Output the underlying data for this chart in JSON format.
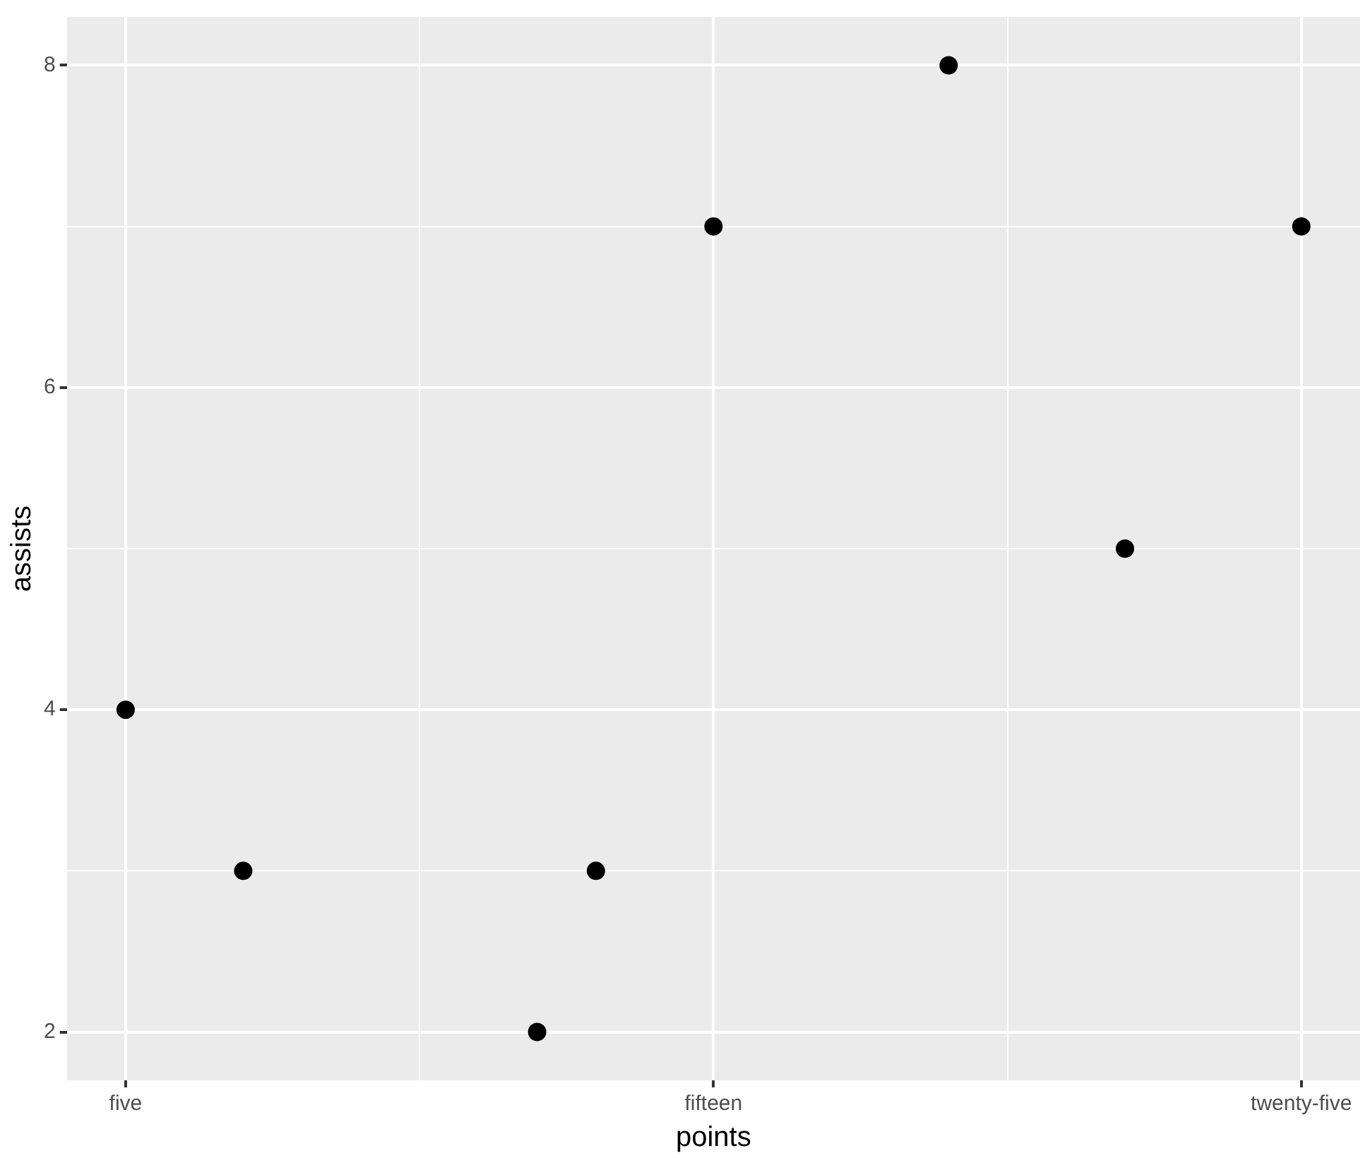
{
  "chart_data": {
    "type": "scatter",
    "xlabel": "points",
    "ylabel": "assists",
    "categories": [
      "five",
      null,
      null,
      null,
      null,
      null,
      null,
      null,
      null,
      null,
      "fifteen",
      null,
      null,
      null,
      null,
      null,
      null,
      null,
      null,
      null,
      "twenty-five"
    ],
    "values": [
      4,
      null,
      3,
      null,
      null,
      null,
      null,
      2,
      3,
      null,
      7,
      null,
      null,
      null,
      8,
      null,
      null,
      5,
      null,
      null,
      7
    ],
    "color": "#000000",
    "marker": "circle",
    "grid": true,
    "legend": false,
    "ylim": [
      1.7,
      8.3
    ],
    "yticks": [
      2,
      {
        "value": 3,
        "label": null
      },
      4,
      {
        "value": 5,
        "label": null
      },
      6,
      {
        "value": 7,
        "label": null
      },
      8
    ]
  }
}
